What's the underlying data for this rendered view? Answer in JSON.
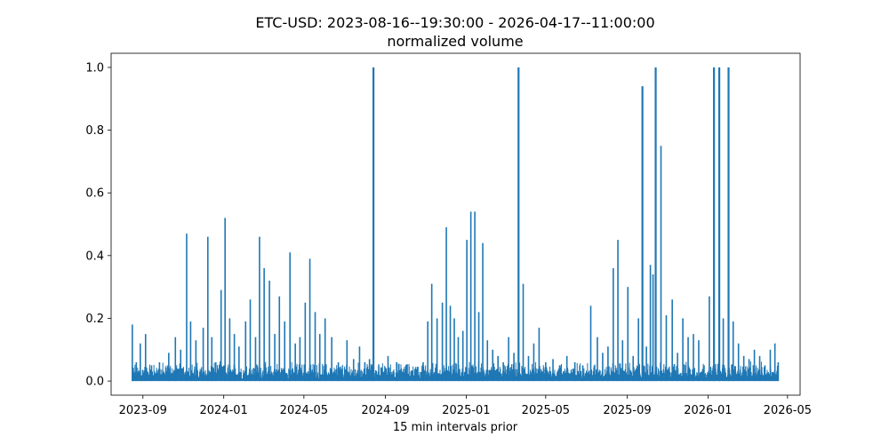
{
  "chart_data": {
    "type": "line",
    "title": "ETC-USD: 2023-08-16--19:30:00 - 2026-04-17--11:00:00",
    "subtitle": "normalized volume",
    "xlabel": "15 min intervals prior",
    "ylabel": "",
    "xlim": [
      "2023-07-15",
      "2026-05-20"
    ],
    "ylim": [
      -0.045,
      1.045
    ],
    "x_ticks": [
      "2023-09",
      "2024-01",
      "2024-05",
      "2024-09",
      "2025-01",
      "2025-05",
      "2025-09",
      "2026-01",
      "2026-05"
    ],
    "y_ticks": [
      "0.0",
      "0.2",
      "0.4",
      "0.6",
      "0.8",
      "1.0"
    ],
    "grid": false,
    "series_color": "#1f77b4",
    "series": [
      {
        "x": [
          "2023-08-16",
          "2023-08-17",
          "2023-08-22",
          "2023-08-28",
          "2023-09-05",
          "2023-09-14",
          "2023-09-26",
          "2023-10-10",
          "2023-10-20",
          "2023-10-28",
          "2023-11-06",
          "2023-11-12",
          "2023-11-20",
          "2023-12-01",
          "2023-12-08",
          "2023-12-14",
          "2023-12-20",
          "2023-12-28",
          "2024-01-03",
          "2024-01-10",
          "2024-01-17",
          "2024-01-24",
          "2024-02-03",
          "2024-02-10",
          "2024-02-18",
          "2024-02-24",
          "2024-03-02",
          "2024-03-10",
          "2024-03-18",
          "2024-03-25",
          "2024-04-02",
          "2024-04-10",
          "2024-04-18",
          "2024-04-25",
          "2024-05-03",
          "2024-05-10",
          "2024-05-18",
          "2024-05-25",
          "2024-06-02",
          "2024-06-12",
          "2024-06-22",
          "2024-07-05",
          "2024-07-15",
          "2024-07-24",
          "2024-08-01",
          "2024-08-08",
          "2024-08-14",
          "2024-08-22",
          "2024-09-05",
          "2024-09-18",
          "2024-10-02",
          "2024-10-16",
          "2024-10-28",
          "2024-11-04",
          "2024-11-10",
          "2024-11-18",
          "2024-11-26",
          "2024-12-02",
          "2024-12-08",
          "2024-12-14",
          "2024-12-20",
          "2024-12-27",
          "2025-01-02",
          "2025-01-08",
          "2025-01-14",
          "2025-01-20",
          "2025-01-26",
          "2025-02-02",
          "2025-02-10",
          "2025-02-18",
          "2025-02-26",
          "2025-03-06",
          "2025-03-14",
          "2025-03-21",
          "2025-03-28",
          "2025-04-05",
          "2025-04-13",
          "2025-04-21",
          "2025-05-01",
          "2025-05-12",
          "2025-05-22",
          "2025-06-02",
          "2025-06-14",
          "2025-06-26",
          "2025-07-08",
          "2025-07-18",
          "2025-07-26",
          "2025-08-03",
          "2025-08-11",
          "2025-08-18",
          "2025-08-25",
          "2025-09-02",
          "2025-09-10",
          "2025-09-18",
          "2025-09-24",
          "2025-09-30",
          "2025-10-06",
          "2025-10-10",
          "2025-10-14",
          "2025-10-22",
          "2025-10-30",
          "2025-11-08",
          "2025-11-16",
          "2025-11-24",
          "2025-12-02",
          "2025-12-10",
          "2025-12-18",
          "2025-12-26",
          "2026-01-03",
          "2026-01-10",
          "2026-01-18",
          "2026-01-24",
          "2026-02-01",
          "2026-02-08",
          "2026-02-16",
          "2026-02-24",
          "2026-03-04",
          "2026-03-12",
          "2026-03-20",
          "2026-03-28",
          "2026-04-05",
          "2026-04-12",
          "2026-04-17"
        ],
        "values": [
          0.18,
          0.04,
          0.06,
          0.12,
          0.15,
          0.05,
          0.06,
          0.09,
          0.14,
          0.1,
          0.47,
          0.19,
          0.13,
          0.17,
          0.46,
          0.14,
          0.06,
          0.29,
          0.52,
          0.2,
          0.15,
          0.11,
          0.19,
          0.26,
          0.14,
          0.46,
          0.36,
          0.32,
          0.15,
          0.27,
          0.19,
          0.41,
          0.12,
          0.14,
          0.25,
          0.39,
          0.22,
          0.15,
          0.2,
          0.14,
          0.06,
          0.13,
          0.07,
          0.11,
          0.06,
          0.07,
          1.0,
          0.05,
          0.08,
          0.06,
          0.05,
          0.04,
          0.06,
          0.19,
          0.31,
          0.2,
          0.25,
          0.49,
          0.24,
          0.2,
          0.14,
          0.16,
          0.45,
          0.54,
          0.54,
          0.22,
          0.44,
          0.13,
          0.1,
          0.08,
          0.06,
          0.14,
          0.09,
          1.0,
          0.31,
          0.08,
          0.12,
          0.17,
          0.06,
          0.07,
          0.05,
          0.08,
          0.06,
          0.05,
          0.24,
          0.14,
          0.09,
          0.11,
          0.36,
          0.45,
          0.13,
          0.3,
          0.08,
          0.2,
          0.94,
          0.11,
          0.37,
          0.34,
          1.0,
          0.75,
          0.21,
          0.26,
          0.09,
          0.2,
          0.14,
          0.15,
          0.13,
          0.05,
          0.27,
          1.0,
          1.0,
          0.2,
          1.0,
          0.19,
          0.12,
          0.08,
          0.07,
          0.1,
          0.08,
          0.05,
          0.1,
          0.12,
          0.06
        ]
      }
    ],
    "baseline_noise_max": 0.04
  }
}
